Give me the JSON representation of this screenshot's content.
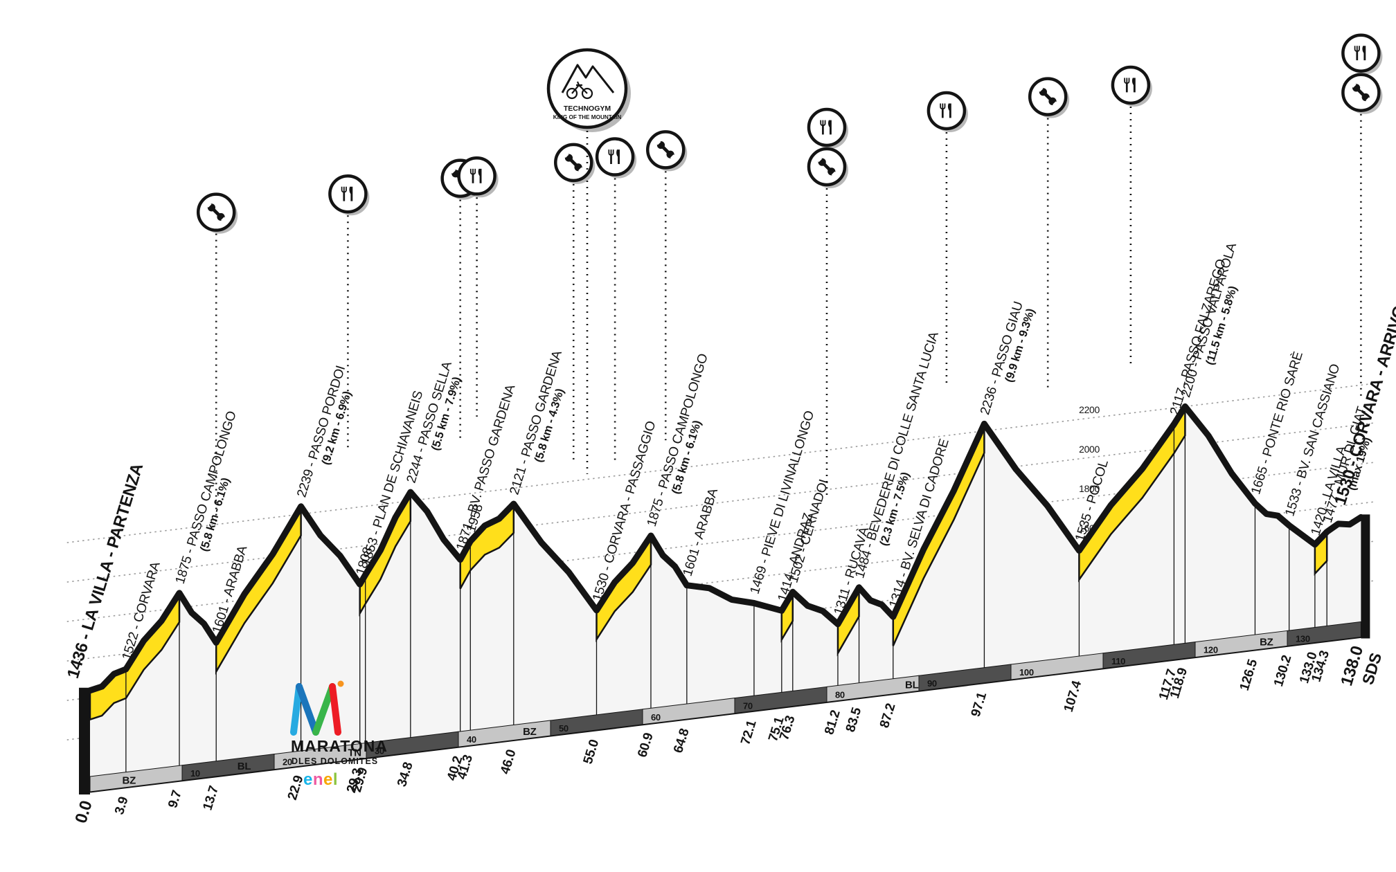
{
  "event": {
    "logo_title": "MARATONA",
    "logo_subtitle": "DLES DOLOMITES",
    "logo_sponsor": "enel",
    "kom_sponsor": "TECHNOGYM",
    "kom_label": "KING OF THE MOUNTAIN"
  },
  "chart_data": {
    "type": "area",
    "x_unit": "km",
    "y_unit": "m",
    "x_range": [
      0,
      138
    ],
    "finish_marker": "SDS",
    "gridlines_all": [
      1200,
      1400,
      1600,
      1800,
      2000,
      2200
    ],
    "gridline_labels": [
      1600,
      1800,
      2000,
      2200
    ],
    "waypoints": [
      {
        "km": 0.0,
        "elevation": 1436,
        "name": "LA VILLA - PARTENZA",
        "bold": true
      },
      {
        "km": 3.9,
        "elevation": 1522,
        "name": "CORVARA"
      },
      {
        "km": 9.7,
        "elevation": 1875,
        "name": "PASSO CAMPOLONGO",
        "climb": "(5.8 km - 6.1%)"
      },
      {
        "km": 13.7,
        "elevation": 1601,
        "name": "ARABBA"
      },
      {
        "km": 22.9,
        "elevation": 2239,
        "name": "PASSO PORDOI",
        "climb": "(9.2 km - 6.9%)"
      },
      {
        "km": 29.3,
        "elevation": 1808,
        "name": ""
      },
      {
        "km": 29.9,
        "elevation": 1853,
        "name": "PLAN DE SCHIAVANEIS"
      },
      {
        "km": 34.8,
        "elevation": 2244,
        "name": "PASSO SELLA",
        "climb": "(5.5 km - 7.9%)"
      },
      {
        "km": 40.2,
        "elevation": 1871,
        "name": "BV. PASSO GARDENA"
      },
      {
        "km": 41.3,
        "elevation": 1958,
        "name": ""
      },
      {
        "km": 46.0,
        "elevation": 2121,
        "name": "PASSO GARDENA",
        "climb": "(5.8 km - 4.3%)"
      },
      {
        "km": 55.0,
        "elevation": 1530,
        "name": "CORVARA - PASSAGGIO"
      },
      {
        "km": 60.9,
        "elevation": 1875,
        "name": "PASSO CAMPOLONGO",
        "climb": "(5.8 km - 6.1%)"
      },
      {
        "km": 64.8,
        "elevation": 1601,
        "name": "ARABBA"
      },
      {
        "km": 72.1,
        "elevation": 1469,
        "name": "PIEVE DI LIVINALLONGO"
      },
      {
        "km": 75.1,
        "elevation": 1414,
        "name": "ANDRAZ"
      },
      {
        "km": 76.3,
        "elevation": 1502,
        "name": "CERNADOI"
      },
      {
        "km": 81.2,
        "elevation": 1311,
        "name": "RUCAVÀ"
      },
      {
        "km": 83.5,
        "elevation": 1484,
        "name": "BEVEDERE DI COLLE SANTA LUCIA",
        "climb": "(2.3 km - 7.5%)"
      },
      {
        "km": 87.2,
        "elevation": 1314,
        "name": "BV. SELVA DI CADORE"
      },
      {
        "km": 97.1,
        "elevation": 2236,
        "name": "PASSO GIAU",
        "climb": "(9.9 km - 9.3%)"
      },
      {
        "km": 107.4,
        "elevation": 1535,
        "name": "POCOL"
      },
      {
        "km": 117.7,
        "elevation": 2117,
        "name": "PASSO FALZAREGO"
      },
      {
        "km": 118.9,
        "elevation": 2200,
        "name": "PASSO VALPAROLA",
        "climb": "(11.5 km - 5.8%)"
      },
      {
        "km": 126.5,
        "elevation": 1665,
        "name": "PONTE RIO SARÈ"
      },
      {
        "km": 130.2,
        "elevation": 1533,
        "name": "BV. SAN CASSIANO"
      },
      {
        "km": 133.0,
        "elevation": 1420,
        "name": "LA VILLA"
      },
      {
        "km": 134.3,
        "elevation": 1477,
        "name": "MUR DL GIAT",
        "climb": "(max 19%)"
      },
      {
        "km": 138.0,
        "elevation": 1530,
        "name": "CORVARA - ARRIVO",
        "bold": true
      }
    ],
    "climb_segments": [
      [
        0,
        9.7
      ],
      [
        13.7,
        22.9
      ],
      [
        29.3,
        34.8
      ],
      [
        40.2,
        46.0
      ],
      [
        55.0,
        60.9
      ],
      [
        75.1,
        76.3
      ],
      [
        81.2,
        83.5
      ],
      [
        87.2,
        97.1
      ],
      [
        107.4,
        118.9
      ],
      [
        133.0,
        134.3
      ]
    ],
    "km_ticks": [
      10,
      20,
      30,
      40,
      50,
      60,
      70,
      80,
      90,
      100,
      110,
      120,
      130
    ],
    "provinces": [
      {
        "code": "BZ",
        "from": 0,
        "label_km": 3.5
      },
      {
        "code": "BL",
        "from": 9.7,
        "label_km": 16
      },
      {
        "code": "TN",
        "from": 22.9,
        "label_km": 28
      },
      {
        "code": "BZ",
        "from": 34.8,
        "label_km": 47
      },
      {
        "code": "BL",
        "from": 60.9,
        "label_km": 88.5
      },
      {
        "code": "BZ",
        "from": 120.5,
        "label_km": 127
      }
    ],
    "stations": [
      {
        "km": 13.7,
        "services": [
          "mechanical"
        ]
      },
      {
        "km": 28.0,
        "services": [
          "refreshment"
        ]
      },
      {
        "km": 40.2,
        "services": [
          "mechanical"
        ]
      },
      {
        "km": 42.0,
        "services": [
          "refreshment"
        ]
      },
      {
        "km": 52.5,
        "services": [
          "mechanical"
        ]
      },
      {
        "km": 57.0,
        "services": [
          "refreshment"
        ]
      },
      {
        "km": 62.5,
        "services": [
          "mechanical"
        ]
      },
      {
        "km": 80.0,
        "services": [
          "refreshment",
          "mechanical"
        ]
      },
      {
        "km": 93.0,
        "services": [
          "refreshment"
        ]
      },
      {
        "km": 104.0,
        "services": [
          "mechanical"
        ]
      },
      {
        "km": 113.0,
        "services": [
          "refreshment"
        ]
      },
      {
        "km": 138.0,
        "services": [
          "refreshment",
          "mechanical"
        ]
      }
    ],
    "colors": {
      "climb": "#ffdf1b",
      "fill": "#f5f5f5",
      "outline": "#141414",
      "band_dark": "#4f4f4f",
      "band_light": "#c6c6c6",
      "grid": "#9b9b9b",
      "enel": [
        "#18b5ea",
        "#ef59a1",
        "#f7a600",
        "#8bc53f"
      ],
      "logo_m": [
        "#27aae1",
        "#1b75bb",
        "#39b54a",
        "#ed1c24",
        "#f7941e"
      ]
    }
  }
}
